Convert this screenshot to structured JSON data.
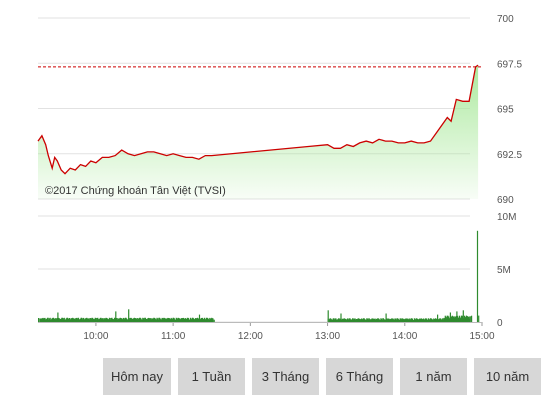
{
  "chart_data": [
    {
      "type": "area",
      "watermark": "©2017 Chứng khoán Tân Việt (TVSI)",
      "x_axis_ticks": [
        "10:00",
        "11:00",
        "12:00",
        "13:00",
        "14:00",
        "15:00"
      ],
      "ylim": [
        690,
        700
      ],
      "y_ticks": [
        "700",
        "697.5",
        "695",
        "692.5",
        "690"
      ],
      "reference_value": 697.3,
      "line_color": "#cc0000",
      "fill_color": "#a8e89a",
      "series": [
        {
          "x": [
            "09:15",
            "09:18",
            "09:21",
            "09:23",
            "09:26",
            "09:28",
            "09:30",
            "09:33",
            "09:36",
            "09:40",
            "09:44",
            "09:48",
            "09:52",
            "09:56",
            "10:00",
            "10:05",
            "10:10",
            "10:15",
            "10:20",
            "10:25",
            "10:30",
            "10:35",
            "10:40",
            "10:45",
            "10:50",
            "10:55",
            "11:00",
            "11:05",
            "11:10",
            "11:15",
            "11:20",
            "11:25",
            "11:30",
            "12:45",
            "13:00",
            "13:05",
            "13:10",
            "13:15",
            "13:20",
            "13:25",
            "13:30",
            "13:35",
            "13:40",
            "13:45",
            "13:50",
            "13:55",
            "14:00",
            "14:05",
            "14:10",
            "14:15",
            "14:20",
            "14:25",
            "14:30",
            "14:33",
            "14:36",
            "14:40",
            "14:45",
            "14:50",
            "14:55",
            "14:57"
          ],
          "values": [
            693.2,
            693.5,
            693.0,
            692.4,
            691.7,
            692.3,
            692.1,
            691.6,
            691.4,
            691.7,
            691.6,
            691.9,
            691.8,
            692.1,
            692.0,
            692.3,
            692.3,
            692.4,
            692.7,
            692.5,
            692.4,
            692.5,
            692.6,
            692.6,
            692.5,
            692.4,
            692.5,
            692.4,
            692.3,
            692.3,
            692.2,
            692.4,
            692.4,
            692.9,
            693.0,
            692.8,
            692.8,
            693.0,
            692.9,
            693.1,
            693.2,
            693.1,
            693.3,
            693.2,
            693.2,
            693.1,
            693.1,
            693.2,
            693.1,
            693.1,
            693.2,
            693.7,
            694.2,
            694.5,
            694.3,
            695.5,
            695.4,
            695.4,
            697.3,
            697.4
          ]
        }
      ]
    },
    {
      "type": "bar",
      "x_axis_ticks": [
        "10:00",
        "11:00",
        "12:00",
        "13:00",
        "14:00",
        "15:00"
      ],
      "ylim": [
        0,
        10
      ],
      "y_ticks": [
        "10M",
        "5M",
        "0"
      ],
      "bar_color": "#2e8b2e",
      "series": [
        {
          "name": "volume",
          "sessions": [
            {
              "from": "09:15",
              "to": "11:30",
              "typical_M": 0.4
            },
            {
              "from": "13:00",
              "to": "14:30",
              "typical_M": 0.35
            },
            {
              "from": "14:30",
              "to": "14:50",
              "typical_M": 0.6
            }
          ],
          "x": [
            "09:30",
            "10:15",
            "10:25",
            "11:20",
            "13:00",
            "13:10",
            "13:45",
            "14:25",
            "14:35",
            "14:40",
            "14:45",
            "14:56",
            "14:57"
          ],
          "values": [
            0.9,
            1.0,
            1.2,
            0.7,
            1.1,
            0.8,
            0.8,
            0.7,
            0.9,
            1.0,
            1.1,
            8.6,
            0.6
          ]
        }
      ]
    }
  ],
  "range_buttons": [
    "Hôm nay",
    "1 Tuần",
    "3 Tháng",
    "6 Tháng",
    "1 năm",
    "10 năm"
  ]
}
